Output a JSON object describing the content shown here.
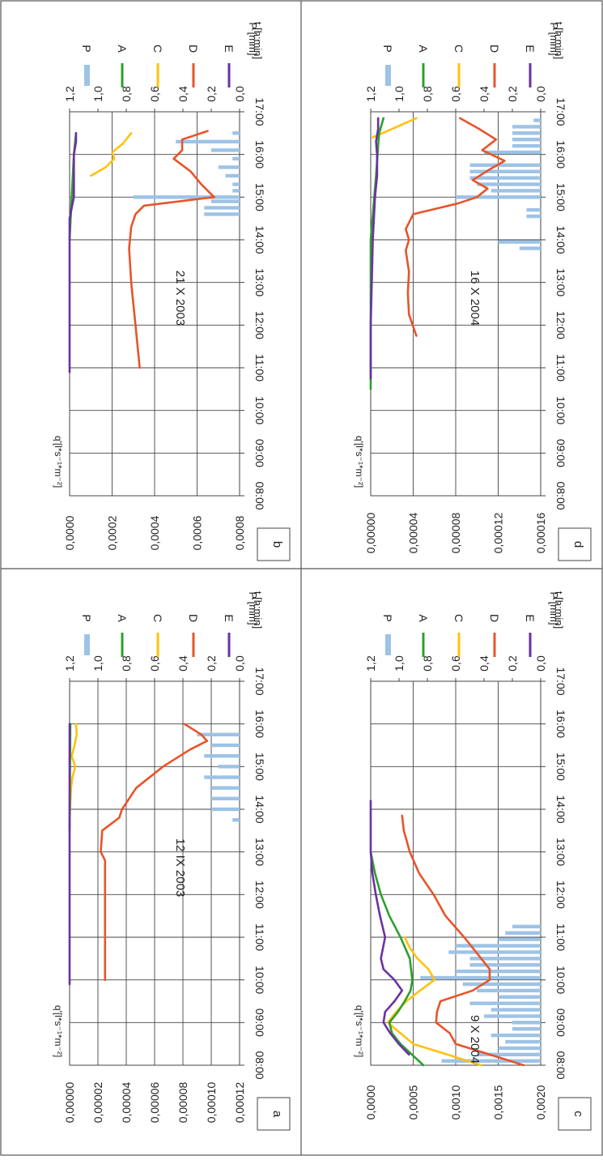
{
  "figure": {
    "rotation": "rotated 90° clockwise (page is landscape figure shown in portrait)"
  },
  "legend_items": [
    {
      "code": "P",
      "color": "#9dc3e6",
      "kind": "bar"
    },
    {
      "code": "A",
      "color": "#2ca02c",
      "kind": "line"
    },
    {
      "code": "C",
      "color": "#ffc20e",
      "kind": "line"
    },
    {
      "code": "D",
      "color": "#e8542a",
      "kind": "line"
    },
    {
      "code": "E",
      "color": "#6a329f",
      "kind": "line"
    }
  ],
  "chart_data": [
    {
      "panel": "a",
      "type": "line",
      "title": "12 IX 2003",
      "ylabel": "q'[l*s⁻¹*m⁻²]",
      "y2label": "P [mm]",
      "xlabel": "t [h:min]",
      "x_ticks": [
        "08:00",
        "09:00",
        "10:00",
        "11:00",
        "12:00",
        "13:00",
        "14:00",
        "15:00",
        "16:00",
        "17:00"
      ],
      "xlim": [
        8,
        17
      ],
      "ylim": [
        0,
        0.00012
      ],
      "y_ticks": [
        "0,00000",
        "0,00002",
        "0,00004",
        "0,00006",
        "0,00008",
        "0,00010",
        "0,00012"
      ],
      "y_tick_values": [
        0,
        2e-05,
        4e-05,
        6e-05,
        8e-05,
        0.0001,
        0.00012
      ],
      "y2lim": [
        0,
        1.2
      ],
      "y2_ticks": [
        "0,0",
        "0,2",
        "0,4",
        "0,6",
        "0,8",
        "1,0",
        "1,2"
      ],
      "y2_tick_values": [
        0,
        0.2,
        0.4,
        0.6,
        0.8,
        1.0,
        1.2
      ],
      "bars": {
        "name": "P",
        "x": [
          13.75,
          14.0,
          14.25,
          14.5,
          14.75,
          15.0,
          15.25,
          15.5,
          15.75
        ],
        "values": [
          0.05,
          0.2,
          0.2,
          0.2,
          0.25,
          0.15,
          0.25,
          0.2,
          0.3
        ]
      },
      "series": [
        {
          "name": "D",
          "x": [
            10.0,
            11.0,
            12.0,
            12.8,
            13.0,
            13.5,
            13.8,
            14.0,
            14.5,
            15.0,
            15.4,
            15.6,
            15.75,
            16.0
          ],
          "y": [
            2.5e-05,
            2.5e-05,
            2.5e-05,
            2.5e-05,
            2.2e-05,
            2.3e-05,
            3.5e-05,
            3.7e-05,
            4.7e-05,
            6.6e-05,
            8.5e-05,
            9.7e-05,
            9.3e-05,
            8.1e-05
          ]
        },
        {
          "name": "C",
          "x": [
            13.75,
            14.5,
            14.75,
            15.0,
            15.25,
            15.5,
            15.75,
            16.0
          ],
          "y": [
            0.0,
            1e-06,
            2e-06,
            4e-06,
            1.5e-06,
            3.5e-06,
            5e-06,
            4.5e-06
          ]
        },
        {
          "name": "A",
          "x": [
            13.5,
            16.0
          ],
          "y": [
            0.0,
            5e-07
          ]
        },
        {
          "name": "E",
          "x": [
            9.9,
            16.0
          ],
          "y": [
            0.0,
            0.0
          ]
        }
      ]
    },
    {
      "panel": "b",
      "type": "line",
      "title": "21 X 2003",
      "ylabel": "q'[l*s⁻¹*m⁻²]",
      "y2label": "P [mm]",
      "xlabel": "t [h:min]",
      "x_ticks": [
        "08:00",
        "09:00",
        "10:00",
        "11:00",
        "12:00",
        "13:00",
        "14:00",
        "15:00",
        "16:00",
        "17:00"
      ],
      "xlim": [
        8,
        17
      ],
      "ylim": [
        0,
        0.0008
      ],
      "y_ticks": [
        "0,0000",
        "0,0002",
        "0,0004",
        "0,0006",
        "0,0008"
      ],
      "y_tick_values": [
        0,
        0.0002,
        0.0004,
        0.0006,
        0.0008
      ],
      "y2lim": [
        0,
        1.2
      ],
      "y2_ticks": [
        "0,0",
        "0,2",
        "0,4",
        "0,6",
        "0,8",
        "1,0",
        "1,2"
      ],
      "y2_tick_values": [
        0,
        0.2,
        0.4,
        0.6,
        0.8,
        1.0,
        1.2
      ],
      "bars": {
        "name": "P",
        "x": [
          14.6,
          14.75,
          14.9,
          15.0,
          15.15,
          15.3,
          15.5,
          15.7,
          15.9,
          16.1,
          16.3,
          16.5
        ],
        "values": [
          0.25,
          0.25,
          0.2,
          0.75,
          0.05,
          0.05,
          0.1,
          0.15,
          0.05,
          0.2,
          0.45,
          0.05
        ]
      },
      "series": [
        {
          "name": "D",
          "x": [
            11.0,
            12.0,
            13.0,
            13.8,
            14.3,
            14.6,
            14.8,
            15.0,
            15.3,
            15.6,
            15.9,
            16.1,
            16.35,
            16.55
          ],
          "y": [
            0.00033,
            0.00031,
            0.00029,
            0.00028,
            0.00029,
            0.00031,
            0.00035,
            0.00068,
            0.00062,
            0.00057,
            0.00049,
            0.00053,
            0.00053,
            0.00065
          ]
        },
        {
          "name": "C",
          "x": [
            15.5,
            15.7,
            15.9,
            16.05,
            16.25,
            16.5
          ],
          "y": [
            0.0001,
            0.00017,
            0.00021,
            0.0002,
            0.00025,
            0.00029
          ]
        },
        {
          "name": "A",
          "x": [
            14.0,
            15.0,
            16.0,
            16.5
          ],
          "y": [
            0.0,
            1e-05,
            2e-05,
            3e-05
          ]
        },
        {
          "name": "E",
          "x": [
            10.9,
            14.5,
            15.0,
            15.5,
            16.0,
            16.3,
            16.5
          ],
          "y": [
            0.0,
            0.0,
            2e-05,
            2e-05,
            2e-05,
            3e-05,
            3e-05
          ]
        }
      ]
    },
    {
      "panel": "c",
      "type": "line",
      "title": "9 X 2004",
      "ylabel": "q'[l*s⁻¹*m⁻²]",
      "y2label": "P [mm]",
      "xlabel": "t [h:min]",
      "x_ticks": [
        "08:00",
        "09:00",
        "10:00",
        "11:00",
        "12:00",
        "13:00",
        "14:00",
        "15:00",
        "16:00",
        "17:00"
      ],
      "xlim": [
        8,
        17
      ],
      "ylim": [
        0,
        0.002
      ],
      "y_ticks": [
        "0,0000",
        "0,0005",
        "0,0010",
        "0,0015",
        "0,0020"
      ],
      "y_tick_values": [
        0,
        0.0005,
        0.001,
        0.0015,
        0.002
      ],
      "y2lim": [
        0,
        1.2
      ],
      "y2_ticks": [
        "0,0",
        "0,2",
        "0,4",
        "0,6",
        "0,8",
        "1,0",
        "1,2"
      ],
      "y2_tick_values": [
        0,
        0.2,
        0.4,
        0.6,
        0.8,
        1.0,
        1.2
      ],
      "bars": {
        "name": "P",
        "x": [
          8.1,
          8.25,
          8.4,
          8.55,
          8.7,
          8.85,
          9.0,
          9.15,
          9.3,
          9.45,
          9.6,
          9.75,
          9.9,
          10.05,
          10.2,
          10.35,
          10.5,
          10.65,
          10.8,
          10.95,
          11.1,
          11.25
        ],
        "values": [
          0.7,
          0.45,
          0.3,
          0.25,
          0.35,
          0.2,
          0.2,
          0.4,
          0.35,
          0.5,
          0.3,
          0.45,
          0.55,
          0.85,
          0.6,
          0.5,
          0.5,
          0.65,
          0.6,
          0.3,
          0.25,
          0.2
        ]
      },
      "series": [
        {
          "name": "D",
          "x": [
            8.0,
            8.25,
            8.5,
            8.75,
            9.0,
            9.25,
            9.5,
            9.75,
            10.0,
            10.25,
            10.5,
            11.0,
            11.5,
            12.0,
            12.5,
            13.0,
            13.5,
            13.85
          ],
          "y": [
            0.0018,
            0.0014,
            0.001,
            0.00093,
            0.00077,
            0.00078,
            0.00082,
            0.0012,
            0.0014,
            0.0014,
            0.0013,
            0.0011,
            0.00088,
            0.00074,
            0.00057,
            0.00046,
            0.00039,
            0.00037
          ]
        },
        {
          "name": "C",
          "x": [
            8.0,
            8.25,
            8.5,
            8.75,
            9.0,
            9.25,
            9.5,
            9.75,
            10.0,
            10.25,
            10.5,
            10.75,
            11.0
          ],
          "y": [
            0.0013,
            0.0009,
            0.0005,
            0.00035,
            0.0002,
            0.0003,
            0.00042,
            0.00058,
            0.00075,
            0.00068,
            0.00055,
            0.00046,
            0.0004
          ]
        },
        {
          "name": "A",
          "x": [
            8.0,
            8.5,
            8.75,
            9.0,
            9.25,
            9.5,
            9.75,
            10.0,
            10.5,
            11.0,
            11.5,
            12.0,
            12.5,
            13.0
          ],
          "y": [
            0.00062,
            0.00035,
            0.00025,
            0.00022,
            0.00032,
            0.0004,
            0.00047,
            0.00049,
            0.00046,
            0.00035,
            0.00022,
            0.00012,
            5e-05,
            0.0
          ]
        },
        {
          "name": "E",
          "x": [
            8.25,
            8.5,
            8.75,
            9.0,
            9.25,
            9.5,
            9.75,
            10.0,
            10.25,
            10.5,
            11.0,
            11.5,
            12.0,
            12.5,
            13.0,
            14.2
          ],
          "y": [
            0.00045,
            0.00033,
            0.00023,
            0.00015,
            0.00017,
            0.00028,
            0.00037,
            0.00028,
            0.00015,
            0.00012,
            0.00017,
            0.00011,
            6e-05,
            2e-05,
            0.0,
            0.0
          ]
        }
      ]
    },
    {
      "panel": "d",
      "type": "line",
      "title": "16 X 2004",
      "ylabel": "q'[l*s⁻¹*m⁻²]",
      "y2label": "P [mm]",
      "xlabel": "t [h:min]",
      "x_ticks": [
        "08:00",
        "09:00",
        "10:00",
        "11:00",
        "12:00",
        "13:00",
        "14:00",
        "15:00",
        "16:00",
        "17:00"
      ],
      "xlim": [
        8,
        17
      ],
      "ylim": [
        0,
        0.00016
      ],
      "y_ticks": [
        "0,00000",
        "0,00004",
        "0,00008",
        "0,00012",
        "0,00016"
      ],
      "y_tick_values": [
        0,
        4e-05,
        8e-05,
        0.00012,
        0.00016
      ],
      "y2lim": [
        0,
        1.2
      ],
      "y2_ticks": [
        "0,0",
        "0,2",
        "0,4",
        "0,6",
        "0,8",
        "1,0",
        "1,2"
      ],
      "y2_tick_values": [
        0,
        0.2,
        0.4,
        0.6,
        0.8,
        1.0,
        1.2
      ],
      "bars": {
        "name": "P",
        "x": [
          13.8,
          13.95,
          14.55,
          14.7,
          15.0,
          15.15,
          15.3,
          15.45,
          15.6,
          15.75,
          16.05,
          16.2,
          16.35,
          16.5,
          16.65,
          16.8
        ],
        "values": [
          0.15,
          0.3,
          0.1,
          0.1,
          0.6,
          0.35,
          0.45,
          0.5,
          0.5,
          0.5,
          0.4,
          0.2,
          0.2,
          0.2,
          0.2,
          0.05
        ]
      },
      "series": [
        {
          "name": "D",
          "x": [
            11.75,
            12.25,
            12.75,
            13.25,
            13.75,
            14.0,
            14.25,
            14.6,
            14.85,
            15.0,
            15.2,
            15.4,
            15.65,
            15.85,
            16.1,
            16.35,
            16.6,
            16.85
          ],
          "y": [
            4.3e-05,
            3.6e-05,
            3.5e-05,
            3.6e-05,
            3.3e-05,
            3.6e-05,
            3.3e-05,
            4e-05,
            8.2e-05,
            0.0001,
            0.00011,
            9.6e-05,
            0.000112,
            0.000126,
            0.000105,
            0.000118,
            0.000102,
            8.4e-05
          ]
        },
        {
          "name": "C",
          "x": [
            16.4,
            16.75,
            16.85
          ],
          "y": [
            2e-06,
            3.4e-05,
            4.3e-05
          ]
        },
        {
          "name": "A",
          "x": [
            10.5,
            11.0,
            14.0,
            15.5,
            16.2,
            16.5,
            16.85
          ],
          "y": [
            0.0,
            0.0,
            0.0,
            5e-06,
            7e-06,
            8e-06,
            1.2e-05
          ]
        },
        {
          "name": "E",
          "x": [
            10.75,
            12.0,
            14.0,
            15.0,
            15.5,
            16.0,
            16.3,
            16.6,
            16.85
          ],
          "y": [
            0.0,
            0.0,
            2e-06,
            4e-06,
            6e-06,
            6e-06,
            5e-06,
            7e-06,
            7e-06
          ]
        }
      ]
    }
  ]
}
